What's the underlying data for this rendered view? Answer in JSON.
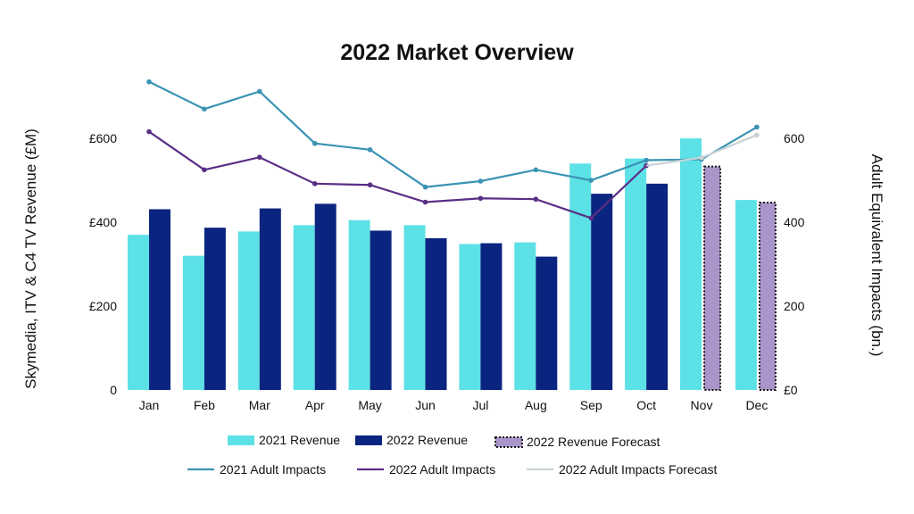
{
  "chart_data": {
    "type": "bar",
    "title": "2022 Market Overview",
    "categories": [
      "Jan",
      "Feb",
      "Mar",
      "Apr",
      "May",
      "Jun",
      "Jul",
      "Aug",
      "Sep",
      "Oct",
      "Nov",
      "Dec"
    ],
    "ylabel": "Skymedia, ITV & C4 TV Revenue (£M)",
    "ylabel_right": "Adult Equivalent Impacts (bn.)",
    "ylim": [
      0,
      730
    ],
    "ylim_right": [
      0,
      730
    ],
    "left_ticks": [
      {
        "value": 0,
        "label": "0"
      },
      {
        "value": 200,
        "label": "£200"
      },
      {
        "value": 400,
        "label": "£400"
      },
      {
        "value": 600,
        "label": "£600"
      }
    ],
    "right_ticks": [
      {
        "value": 0,
        "label": "£0"
      },
      {
        "value": 200,
        "label": "200"
      },
      {
        "value": 400,
        "label": "400"
      },
      {
        "value": 600,
        "label": "600"
      }
    ],
    "bar_series": [
      {
        "name": "2021 Revenue",
        "color": "#5CE1E6",
        "style": "solid",
        "values": [
          370,
          320,
          378,
          393,
          405,
          393,
          348,
          352,
          540,
          552,
          600,
          453
        ]
      },
      {
        "name": "2022 Revenue",
        "color": "#0A2580",
        "style": "solid",
        "values": [
          431,
          387,
          433,
          444,
          380,
          362,
          350,
          318,
          468,
          492,
          null,
          null
        ]
      },
      {
        "name": "2022 Revenue Forecast",
        "color": "#A995C9",
        "style": "dashed",
        "values": [
          null,
          null,
          null,
          null,
          null,
          null,
          null,
          null,
          null,
          null,
          533,
          447
        ]
      }
    ],
    "line_series": [
      {
        "name": "2021 Adult Impacts",
        "color": "#3A93B3",
        "values": [
          735,
          670,
          712,
          588,
          573,
          484,
          498,
          525,
          500,
          548,
          550,
          627
        ]
      },
      {
        "name": "2022 Adult Impacts",
        "color": "#5A2E86",
        "values": [
          616,
          525,
          555,
          492,
          489,
          448,
          457,
          455,
          410,
          535,
          null,
          null
        ]
      },
      {
        "name": "2022 Adult Impacts Forecast",
        "color": "#C9D3D6",
        "values": [
          null,
          null,
          null,
          null,
          null,
          null,
          null,
          null,
          null,
          null,
          554,
          608
        ]
      }
    ],
    "legend_position": "bottom",
    "grid": false
  }
}
